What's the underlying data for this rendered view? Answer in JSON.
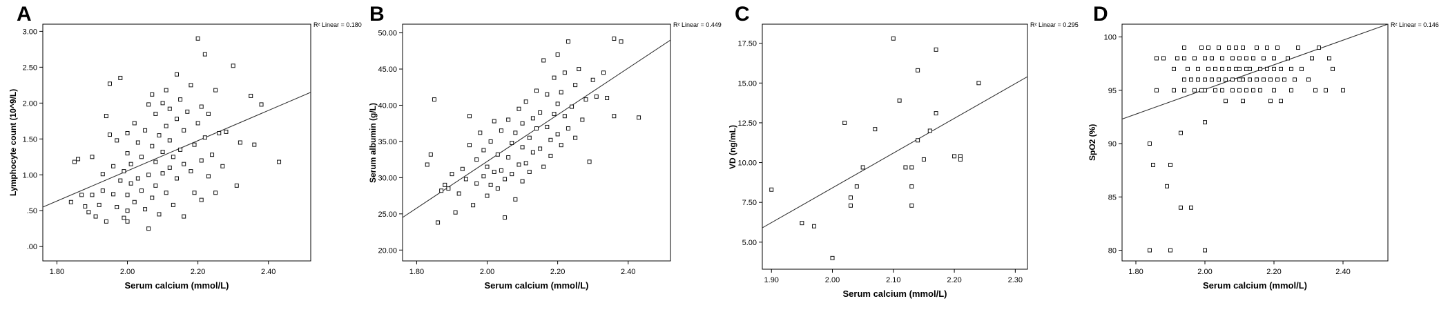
{
  "chart_data": [
    {
      "panel_label": "A",
      "type": "scatter",
      "xlabel": "Serum calcium (mmol/L)",
      "ylabel": "Lymphocyte count (10^9/L)",
      "fit_label": "R² Linear = 0.180",
      "x_ticks": [
        "1.80",
        "2.00",
        "2.20",
        "2.40"
      ],
      "y_ticks": [
        ".00",
        ".50",
        "1.00",
        "1.50",
        "2.00",
        "2.50",
        "3.00"
      ],
      "xlim": [
        1.76,
        2.52
      ],
      "ylim": [
        -0.2,
        3.1
      ],
      "fit_line": [
        [
          1.76,
          0.55
        ],
        [
          2.52,
          2.15
        ]
      ],
      "points": [
        [
          1.84,
          0.62
        ],
        [
          1.85,
          1.18
        ],
        [
          1.86,
          1.22
        ],
        [
          1.87,
          0.72
        ],
        [
          1.88,
          0.56
        ],
        [
          1.89,
          0.48
        ],
        [
          1.9,
          0.72
        ],
        [
          1.9,
          1.25
        ],
        [
          1.91,
          0.42
        ],
        [
          1.92,
          0.58
        ],
        [
          1.93,
          0.78
        ],
        [
          1.93,
          1.01
        ],
        [
          1.94,
          0.35
        ],
        [
          1.94,
          1.82
        ],
        [
          1.95,
          2.27
        ],
        [
          1.95,
          1.56
        ],
        [
          1.96,
          0.73
        ],
        [
          1.96,
          1.12
        ],
        [
          1.97,
          0.55
        ],
        [
          1.97,
          1.48
        ],
        [
          1.98,
          2.35
        ],
        [
          1.98,
          0.92
        ],
        [
          1.99,
          0.4
        ],
        [
          1.99,
          1.05
        ],
        [
          2.0,
          0.35
        ],
        [
          2.0,
          0.5
        ],
        [
          2.0,
          0.72
        ],
        [
          2.0,
          1.3
        ],
        [
          2.0,
          1.58
        ],
        [
          2.01,
          0.88
        ],
        [
          2.01,
          1.15
        ],
        [
          2.02,
          0.62
        ],
        [
          2.02,
          1.72
        ],
        [
          2.03,
          0.95
        ],
        [
          2.03,
          1.45
        ],
        [
          2.04,
          0.78
        ],
        [
          2.04,
          1.25
        ],
        [
          2.05,
          0.52
        ],
        [
          2.05,
          1.62
        ],
        [
          2.06,
          0.25
        ],
        [
          2.06,
          1.0
        ],
        [
          2.06,
          1.98
        ],
        [
          2.07,
          0.68
        ],
        [
          2.07,
          1.4
        ],
        [
          2.07,
          2.12
        ],
        [
          2.08,
          0.85
        ],
        [
          2.08,
          1.18
        ],
        [
          2.08,
          1.85
        ],
        [
          2.09,
          0.45
        ],
        [
          2.09,
          1.55
        ],
        [
          2.1,
          1.02
        ],
        [
          2.1,
          1.32
        ],
        [
          2.1,
          2.0
        ],
        [
          2.11,
          0.75
        ],
        [
          2.11,
          1.68
        ],
        [
          2.11,
          2.18
        ],
        [
          2.12,
          1.1
        ],
        [
          2.12,
          1.48
        ],
        [
          2.12,
          1.92
        ],
        [
          2.13,
          0.58
        ],
        [
          2.13,
          1.25
        ],
        [
          2.14,
          0.95
        ],
        [
          2.14,
          1.78
        ],
        [
          2.14,
          2.4
        ],
        [
          2.15,
          1.35
        ],
        [
          2.15,
          2.05
        ],
        [
          2.16,
          0.42
        ],
        [
          2.16,
          1.15
        ],
        [
          2.16,
          1.62
        ],
        [
          2.17,
          1.88
        ],
        [
          2.18,
          1.05
        ],
        [
          2.18,
          2.25
        ],
        [
          2.19,
          0.75
        ],
        [
          2.19,
          1.42
        ],
        [
          2.2,
          1.72
        ],
        [
          2.2,
          2.9
        ],
        [
          2.21,
          0.65
        ],
        [
          2.21,
          1.2
        ],
        [
          2.21,
          1.95
        ],
        [
          2.22,
          2.68
        ],
        [
          2.22,
          1.52
        ],
        [
          2.23,
          0.98
        ],
        [
          2.23,
          1.85
        ],
        [
          2.24,
          1.28
        ],
        [
          2.25,
          2.18
        ],
        [
          2.25,
          0.75
        ],
        [
          2.26,
          1.58
        ],
        [
          2.27,
          1.12
        ],
        [
          2.28,
          1.6
        ],
        [
          2.3,
          2.52
        ],
        [
          2.31,
          0.85
        ],
        [
          2.32,
          1.45
        ],
        [
          2.35,
          2.1
        ],
        [
          2.36,
          1.42
        ],
        [
          2.38,
          1.98
        ],
        [
          2.43,
          1.18
        ]
      ]
    },
    {
      "panel_label": "B",
      "type": "scatter",
      "xlabel": "Serum calcium (mmol/L)",
      "ylabel": "Serum albumin (g/L)",
      "fit_label": "R² Linear = 0.449",
      "x_ticks": [
        "1.80",
        "2.00",
        "2.20",
        "2.40"
      ],
      "y_ticks": [
        "20.00",
        "25.00",
        "30.00",
        "35.00",
        "40.00",
        "45.00",
        "50.00"
      ],
      "xlim": [
        1.76,
        2.52
      ],
      "ylim": [
        18.5,
        51.2
      ],
      "fit_line": [
        [
          1.76,
          24.5
        ],
        [
          2.52,
          49.0
        ]
      ],
      "points": [
        [
          1.83,
          31.8
        ],
        [
          1.84,
          33.2
        ],
        [
          1.85,
          40.8
        ],
        [
          1.86,
          23.8
        ],
        [
          1.87,
          28.2
        ],
        [
          1.88,
          29.0
        ],
        [
          1.89,
          28.5
        ],
        [
          1.9,
          30.5
        ],
        [
          1.91,
          25.2
        ],
        [
          1.92,
          27.8
        ],
        [
          1.93,
          31.2
        ],
        [
          1.94,
          29.8
        ],
        [
          1.95,
          34.5
        ],
        [
          1.95,
          38.5
        ],
        [
          1.96,
          26.2
        ],
        [
          1.97,
          29.2
        ],
        [
          1.97,
          32.5
        ],
        [
          1.98,
          36.2
        ],
        [
          1.99,
          30.2
        ],
        [
          1.99,
          33.8
        ],
        [
          2.0,
          27.5
        ],
        [
          2.0,
          31.5
        ],
        [
          2.01,
          29.0
        ],
        [
          2.01,
          35.0
        ],
        [
          2.02,
          30.8
        ],
        [
          2.02,
          37.8
        ],
        [
          2.03,
          28.5
        ],
        [
          2.03,
          33.2
        ],
        [
          2.04,
          31.0
        ],
        [
          2.04,
          36.5
        ],
        [
          2.05,
          24.5
        ],
        [
          2.05,
          29.8
        ],
        [
          2.06,
          32.8
        ],
        [
          2.06,
          38.0
        ],
        [
          2.07,
          30.5
        ],
        [
          2.07,
          34.8
        ],
        [
          2.08,
          27.0
        ],
        [
          2.08,
          36.2
        ],
        [
          2.09,
          31.8
        ],
        [
          2.09,
          39.5
        ],
        [
          2.1,
          29.5
        ],
        [
          2.1,
          34.2
        ],
        [
          2.1,
          37.5
        ],
        [
          2.11,
          32.0
        ],
        [
          2.11,
          40.5
        ],
        [
          2.12,
          35.5
        ],
        [
          2.12,
          30.8
        ],
        [
          2.13,
          38.2
        ],
        [
          2.13,
          33.5
        ],
        [
          2.14,
          36.8
        ],
        [
          2.14,
          42.0
        ],
        [
          2.15,
          34.0
        ],
        [
          2.15,
          39.0
        ],
        [
          2.16,
          31.5
        ],
        [
          2.16,
          46.2
        ],
        [
          2.17,
          37.0
        ],
        [
          2.17,
          41.5
        ],
        [
          2.18,
          35.2
        ],
        [
          2.18,
          33.0
        ],
        [
          2.19,
          38.8
        ],
        [
          2.19,
          43.8
        ],
        [
          2.2,
          36.0
        ],
        [
          2.2,
          40.2
        ],
        [
          2.2,
          47.0
        ],
        [
          2.21,
          34.5
        ],
        [
          2.21,
          41.8
        ],
        [
          2.22,
          38.5
        ],
        [
          2.22,
          44.5
        ],
        [
          2.23,
          36.8
        ],
        [
          2.23,
          48.8
        ],
        [
          2.24,
          39.8
        ],
        [
          2.25,
          42.8
        ],
        [
          2.25,
          35.5
        ],
        [
          2.26,
          45.0
        ],
        [
          2.27,
          38.0
        ],
        [
          2.28,
          40.8
        ],
        [
          2.29,
          32.2
        ],
        [
          2.3,
          43.5
        ],
        [
          2.31,
          41.2
        ],
        [
          2.33,
          44.5
        ],
        [
          2.34,
          41.0
        ],
        [
          2.36,
          49.2
        ],
        [
          2.36,
          38.5
        ],
        [
          2.38,
          48.8
        ],
        [
          2.43,
          38.3
        ]
      ]
    },
    {
      "panel_label": "C",
      "type": "scatter",
      "xlabel": "Serum calcium (mmol/L)",
      "ylabel": "VD (ng/mL)",
      "fit_label": "R² Linear = 0.295",
      "x_ticks": [
        "1.90",
        "2.00",
        "2.10",
        "2.20",
        "2.30"
      ],
      "y_ticks": [
        "5.00",
        "7.50",
        "10.00",
        "12.50",
        "15.00",
        "17.50"
      ],
      "xlim": [
        1.885,
        2.32
      ],
      "ylim": [
        3.3,
        18.7
      ],
      "fit_line": [
        [
          1.885,
          5.9
        ],
        [
          2.32,
          15.4
        ]
      ],
      "points": [
        [
          1.9,
          8.3
        ],
        [
          1.95,
          6.2
        ],
        [
          1.97,
          6.0
        ],
        [
          2.0,
          4.0
        ],
        [
          2.02,
          12.5
        ],
        [
          2.03,
          7.8
        ],
        [
          2.03,
          7.3
        ],
        [
          2.04,
          8.5
        ],
        [
          2.05,
          9.7
        ],
        [
          2.07,
          12.1
        ],
        [
          2.1,
          17.8
        ],
        [
          2.11,
          13.9
        ],
        [
          2.12,
          9.7
        ],
        [
          2.13,
          9.7
        ],
        [
          2.13,
          8.5
        ],
        [
          2.13,
          7.3
        ],
        [
          2.14,
          11.4
        ],
        [
          2.14,
          15.8
        ],
        [
          2.15,
          10.2
        ],
        [
          2.16,
          12.0
        ],
        [
          2.17,
          13.1
        ],
        [
          2.17,
          17.1
        ],
        [
          2.2,
          10.4
        ],
        [
          2.21,
          10.4
        ],
        [
          2.21,
          10.2
        ],
        [
          2.24,
          15.0
        ]
      ]
    },
    {
      "panel_label": "D",
      "type": "scatter",
      "xlabel": "Serum calcium (mmol/L)",
      "ylabel": "SpO2 (%)",
      "fit_label": "R² Linear = 0.146",
      "x_ticks": [
        "1.80",
        "2.00",
        "2.20",
        "2.40"
      ],
      "y_ticks": [
        "80",
        "85",
        "90",
        "95",
        "100"
      ],
      "xlim": [
        1.76,
        2.53
      ],
      "ylim": [
        79.0,
        101.2
      ],
      "fit_line": [
        [
          1.76,
          92.3
        ],
        [
          2.53,
          101.2
        ]
      ],
      "points": [
        [
          1.84,
          90
        ],
        [
          1.84,
          80
        ],
        [
          1.85,
          88
        ],
        [
          1.86,
          95
        ],
        [
          1.86,
          98
        ],
        [
          1.88,
          98
        ],
        [
          1.89,
          86
        ],
        [
          1.9,
          88
        ],
        [
          1.9,
          80
        ],
        [
          1.91,
          95
        ],
        [
          1.91,
          97
        ],
        [
          1.92,
          98
        ],
        [
          1.93,
          91
        ],
        [
          1.93,
          84
        ],
        [
          1.94,
          95
        ],
        [
          1.94,
          96
        ],
        [
          1.94,
          98
        ],
        [
          1.94,
          99
        ],
        [
          1.95,
          97
        ],
        [
          1.96,
          84
        ],
        [
          1.96,
          96
        ],
        [
          1.97,
          95
        ],
        [
          1.97,
          98
        ],
        [
          1.98,
          96
        ],
        [
          1.98,
          97
        ],
        [
          1.99,
          95
        ],
        [
          1.99,
          99
        ],
        [
          2.0,
          92
        ],
        [
          2.0,
          80
        ],
        [
          2.0,
          95
        ],
        [
          2.0,
          96
        ],
        [
          2.0,
          98
        ],
        [
          2.01,
          97
        ],
        [
          2.01,
          99
        ],
        [
          2.02,
          96
        ],
        [
          2.02,
          98
        ],
        [
          2.03,
          95
        ],
        [
          2.03,
          97
        ],
        [
          2.04,
          96
        ],
        [
          2.04,
          99
        ],
        [
          2.05,
          95
        ],
        [
          2.05,
          97
        ],
        [
          2.05,
          98
        ],
        [
          2.06,
          94
        ],
        [
          2.06,
          96
        ],
        [
          2.07,
          97
        ],
        [
          2.07,
          99
        ],
        [
          2.08,
          95
        ],
        [
          2.08,
          96
        ],
        [
          2.08,
          98
        ],
        [
          2.09,
          97
        ],
        [
          2.09,
          99
        ],
        [
          2.1,
          95
        ],
        [
          2.1,
          96
        ],
        [
          2.1,
          97
        ],
        [
          2.1,
          98
        ],
        [
          2.11,
          94
        ],
        [
          2.11,
          96
        ],
        [
          2.11,
          99
        ],
        [
          2.12,
          95
        ],
        [
          2.12,
          97
        ],
        [
          2.12,
          98
        ],
        [
          2.13,
          96
        ],
        [
          2.13,
          97
        ],
        [
          2.14,
          95
        ],
        [
          2.14,
          98
        ],
        [
          2.15,
          96
        ],
        [
          2.15,
          99
        ],
        [
          2.16,
          97
        ],
        [
          2.16,
          95
        ],
        [
          2.17,
          96
        ],
        [
          2.17,
          98
        ],
        [
          2.18,
          97
        ],
        [
          2.18,
          99
        ],
        [
          2.19,
          94
        ],
        [
          2.19,
          96
        ],
        [
          2.2,
          95
        ],
        [
          2.2,
          97
        ],
        [
          2.2,
          98
        ],
        [
          2.21,
          96
        ],
        [
          2.21,
          99
        ],
        [
          2.22,
          94
        ],
        [
          2.22,
          97
        ],
        [
          2.23,
          96
        ],
        [
          2.24,
          98
        ],
        [
          2.25,
          95
        ],
        [
          2.25,
          97
        ],
        [
          2.26,
          96
        ],
        [
          2.27,
          99
        ],
        [
          2.28,
          97
        ],
        [
          2.3,
          96
        ],
        [
          2.31,
          98
        ],
        [
          2.32,
          95
        ],
        [
          2.33,
          99
        ],
        [
          2.35,
          95
        ],
        [
          2.36,
          98
        ],
        [
          2.37,
          97
        ],
        [
          2.4,
          95
        ]
      ]
    }
  ]
}
